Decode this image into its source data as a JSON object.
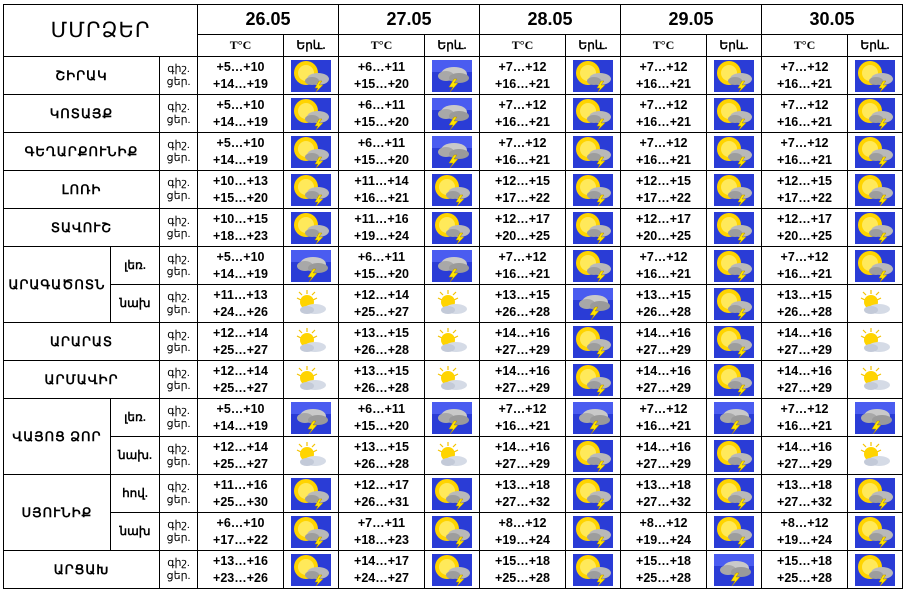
{
  "header": {
    "title": "ՄՄՐՁԵՐ",
    "temp_col": "T°C",
    "icon_col": "Երև."
  },
  "dates": [
    "26.05",
    "27.05",
    "28.05",
    "29.05",
    "30.05"
  ],
  "tod_labels": [
    "գիշ.",
    "ցեր."
  ],
  "rows": [
    {
      "region": "ՇԻՐԱԿ",
      "sub": "",
      "tod": [
        "գիշ.",
        "ցեր."
      ],
      "days": [
        {
          "night": "+5…+10",
          "day": "+14…+19",
          "icon": "sun-cloud-storm"
        },
        {
          "night": "+6…+11",
          "day": "+15…+20",
          "icon": "storm"
        },
        {
          "night": "+7…+12",
          "day": "+16…+21",
          "icon": "sun-cloud-storm"
        },
        {
          "night": "+7…+12",
          "day": "+16…+21",
          "icon": "sun-cloud-storm"
        },
        {
          "night": "+7…+12",
          "day": "+16…+21",
          "icon": "sun-cloud-storm"
        }
      ]
    },
    {
      "region": "ԿՈՏԱՅՔ",
      "sub": "",
      "tod": [
        "գիշ.",
        "ցեր."
      ],
      "days": [
        {
          "night": "+5…+10",
          "day": "+14…+19",
          "icon": "sun-cloud-storm"
        },
        {
          "night": "+6…+11",
          "day": "+15…+20",
          "icon": "storm"
        },
        {
          "night": "+7…+12",
          "day": "+16…+21",
          "icon": "sun-cloud-storm"
        },
        {
          "night": "+7…+12",
          "day": "+16…+21",
          "icon": "sun-cloud-storm"
        },
        {
          "night": "+7…+12",
          "day": "+16…+21",
          "icon": "sun-cloud-storm"
        }
      ]
    },
    {
      "region": "ԳԵՂԱՐՔՈՒՆԻՔ",
      "sub": "",
      "tod": [
        "գիշ.",
        "ցեր."
      ],
      "days": [
        {
          "night": "+5…+10",
          "day": "+14…+19",
          "icon": "sun-cloud-storm"
        },
        {
          "night": "+6…+11",
          "day": "+15…+20",
          "icon": "storm"
        },
        {
          "night": "+7…+12",
          "day": "+16…+21",
          "icon": "sun-cloud-storm"
        },
        {
          "night": "+7…+12",
          "day": "+16…+21",
          "icon": "sun-cloud-storm"
        },
        {
          "night": "+7…+12",
          "day": "+16…+21",
          "icon": "sun-cloud-storm"
        }
      ]
    },
    {
      "region": "ԼՈՌԻ",
      "sub": "",
      "tod": [
        "գիշ.",
        "ցեր."
      ],
      "days": [
        {
          "night": "+10…+13",
          "day": "+15…+20",
          "icon": "sun-cloud-storm"
        },
        {
          "night": "+11…+14",
          "day": "+16…+21",
          "icon": "sun-cloud-storm"
        },
        {
          "night": "+12…+15",
          "day": "+17…+22",
          "icon": "sun-cloud-storm"
        },
        {
          "night": "+12…+15",
          "day": "+17…+22",
          "icon": "sun-cloud-storm"
        },
        {
          "night": "+12…+15",
          "day": "+17…+22",
          "icon": "sun-cloud-storm"
        }
      ]
    },
    {
      "region": "ՏԱՎՈՒՇ",
      "sub": "",
      "tod": [
        "գիշ.",
        "ցեր."
      ],
      "days": [
        {
          "night": "+10…+15",
          "day": "+18…+23",
          "icon": "sun-cloud-storm"
        },
        {
          "night": "+11…+16",
          "day": "+19…+24",
          "icon": "sun-cloud-storm"
        },
        {
          "night": "+12…+17",
          "day": "+20…+25",
          "icon": "sun-cloud-storm"
        },
        {
          "night": "+12…+17",
          "day": "+20…+25",
          "icon": "sun-cloud-storm"
        },
        {
          "night": "+12…+17",
          "day": "+20…+25",
          "icon": "sun-cloud-storm"
        }
      ]
    },
    {
      "region": "ԱՐԱԳԱԾՈՏՆ",
      "sub": "լեռ.",
      "tod": [
        "գիշ.",
        "ցեր."
      ],
      "days": [
        {
          "night": "+5…+10",
          "day": "+14…+19",
          "icon": "storm"
        },
        {
          "night": "+6…+11",
          "day": "+15…+20",
          "icon": "storm"
        },
        {
          "night": "+7…+12",
          "day": "+16…+21",
          "icon": "sun-cloud-storm"
        },
        {
          "night": "+7…+12",
          "day": "+16…+21",
          "icon": "sun-cloud-storm"
        },
        {
          "night": "+7…+12",
          "day": "+16…+21",
          "icon": "sun-cloud-storm"
        }
      ]
    },
    {
      "region": "",
      "sub": "նախ",
      "tod": [
        "գիշ.",
        "ցեր."
      ],
      "days": [
        {
          "night": "+11…+13",
          "day": "+24…+26",
          "icon": "sun-cloud"
        },
        {
          "night": "+12…+14",
          "day": "+25…+27",
          "icon": "sun-cloud"
        },
        {
          "night": "+13…+15",
          "day": "+26…+28",
          "icon": "storm"
        },
        {
          "night": "+13…+15",
          "day": "+26…+28",
          "icon": "sun-cloud-storm"
        },
        {
          "night": "+13…+15",
          "day": "+26…+28",
          "icon": "sun-cloud"
        }
      ]
    },
    {
      "region": "ԱՐԱՐԱՏ",
      "sub": "",
      "tod": [
        "գիշ.",
        "ցեր."
      ],
      "days": [
        {
          "night": "+12…+14",
          "day": "+25…+27",
          "icon": "sun-cloud"
        },
        {
          "night": "+13…+15",
          "day": "+26…+28",
          "icon": "sun-cloud"
        },
        {
          "night": "+14…+16",
          "day": "+27…+29",
          "icon": "sun-cloud-storm"
        },
        {
          "night": "+14…+16",
          "day": "+27…+29",
          "icon": "sun-cloud-storm"
        },
        {
          "night": "+14…+16",
          "day": "+27…+29",
          "icon": "sun-cloud"
        }
      ]
    },
    {
      "region": "ԱՐՄԱՎԻՐ",
      "sub": "",
      "tod": [
        "գիշ.",
        "ցեր."
      ],
      "days": [
        {
          "night": "+12…+14",
          "day": "+25…+27",
          "icon": "sun-cloud"
        },
        {
          "night": "+13…+15",
          "day": "+26…+28",
          "icon": "sun-cloud"
        },
        {
          "night": "+14…+16",
          "day": "+27…+29",
          "icon": "sun-cloud-storm"
        },
        {
          "night": "+14…+16",
          "day": "+27…+29",
          "icon": "sun-cloud-storm"
        },
        {
          "night": "+14…+16",
          "day": "+27…+29",
          "icon": "sun-cloud"
        }
      ]
    },
    {
      "region": "ՎԱՅՈՑ ՁՈՐ",
      "sub": "լեռ.",
      "tod": [
        "գիշ.",
        "ցեր."
      ],
      "days": [
        {
          "night": "+5…+10",
          "day": "+14…+19",
          "icon": "storm"
        },
        {
          "night": "+6…+11",
          "day": "+15…+20",
          "icon": "storm"
        },
        {
          "night": "+7…+12",
          "day": "+16…+21",
          "icon": "storm"
        },
        {
          "night": "+7…+12",
          "day": "+16…+21",
          "icon": "storm"
        },
        {
          "night": "+7…+12",
          "day": "+16…+21",
          "icon": "storm"
        }
      ]
    },
    {
      "region": "",
      "sub": "նախ.",
      "tod": [
        "գիշ.",
        "ցեր."
      ],
      "days": [
        {
          "night": "+12…+14",
          "day": "+25…+27",
          "icon": "sun-cloud"
        },
        {
          "night": "+13…+15",
          "day": "+26…+28",
          "icon": "sun-cloud"
        },
        {
          "night": "+14…+16",
          "day": "+27…+29",
          "icon": "sun-cloud-storm"
        },
        {
          "night": "+14…+16",
          "day": "+27…+29",
          "icon": "sun-cloud-storm"
        },
        {
          "night": "+14…+16",
          "day": "+27…+29",
          "icon": "sun-cloud"
        }
      ]
    },
    {
      "region": "ՍՅՈՒՆԻՔ",
      "sub": "հով.",
      "tod": [
        "գիշ.",
        "ցեր."
      ],
      "days": [
        {
          "night": "+11…+16",
          "day": "+25…+30",
          "icon": "sun-cloud-storm"
        },
        {
          "night": "+12…+17",
          "day": "+26…+31",
          "icon": "sun-cloud-storm"
        },
        {
          "night": "+13…+18",
          "day": "+27…+32",
          "icon": "sun-cloud-storm"
        },
        {
          "night": "+13…+18",
          "day": "+27…+32",
          "icon": "sun-cloud-storm"
        },
        {
          "night": "+13…+18",
          "day": "+27…+32",
          "icon": "sun-cloud-storm"
        }
      ]
    },
    {
      "region": "",
      "sub": "նախ",
      "tod": [
        "գիշ.",
        "ցեր."
      ],
      "days": [
        {
          "night": "+6…+10",
          "day": "+17…+22",
          "icon": "sun-cloud-storm"
        },
        {
          "night": "+7…+11",
          "day": "+18…+23",
          "icon": "sun-cloud-storm"
        },
        {
          "night": "+8…+12",
          "day": "+19…+24",
          "icon": "sun-cloud-storm"
        },
        {
          "night": "+8…+12",
          "day": "+19…+24",
          "icon": "sun-cloud-storm"
        },
        {
          "night": "+8…+12",
          "day": "+19…+24",
          "icon": "sun-cloud-storm"
        }
      ]
    },
    {
      "region": "ԱՐՑԱԽ",
      "sub": "",
      "tod": [
        "գիշ.",
        "ցեր."
      ],
      "days": [
        {
          "night": "+13…+16",
          "day": "+23…+26",
          "icon": "sun-cloud-storm"
        },
        {
          "night": "+14…+17",
          "day": "+24…+27",
          "icon": "sun-cloud-storm"
        },
        {
          "night": "+15…+18",
          "day": "+25…+28",
          "icon": "sun-cloud-storm"
        },
        {
          "night": "+15…+18",
          "day": "+25…+28",
          "icon": "storm"
        },
        {
          "night": "+15…+18",
          "day": "+25…+28",
          "icon": "sun-cloud-storm"
        }
      ]
    }
  ]
}
